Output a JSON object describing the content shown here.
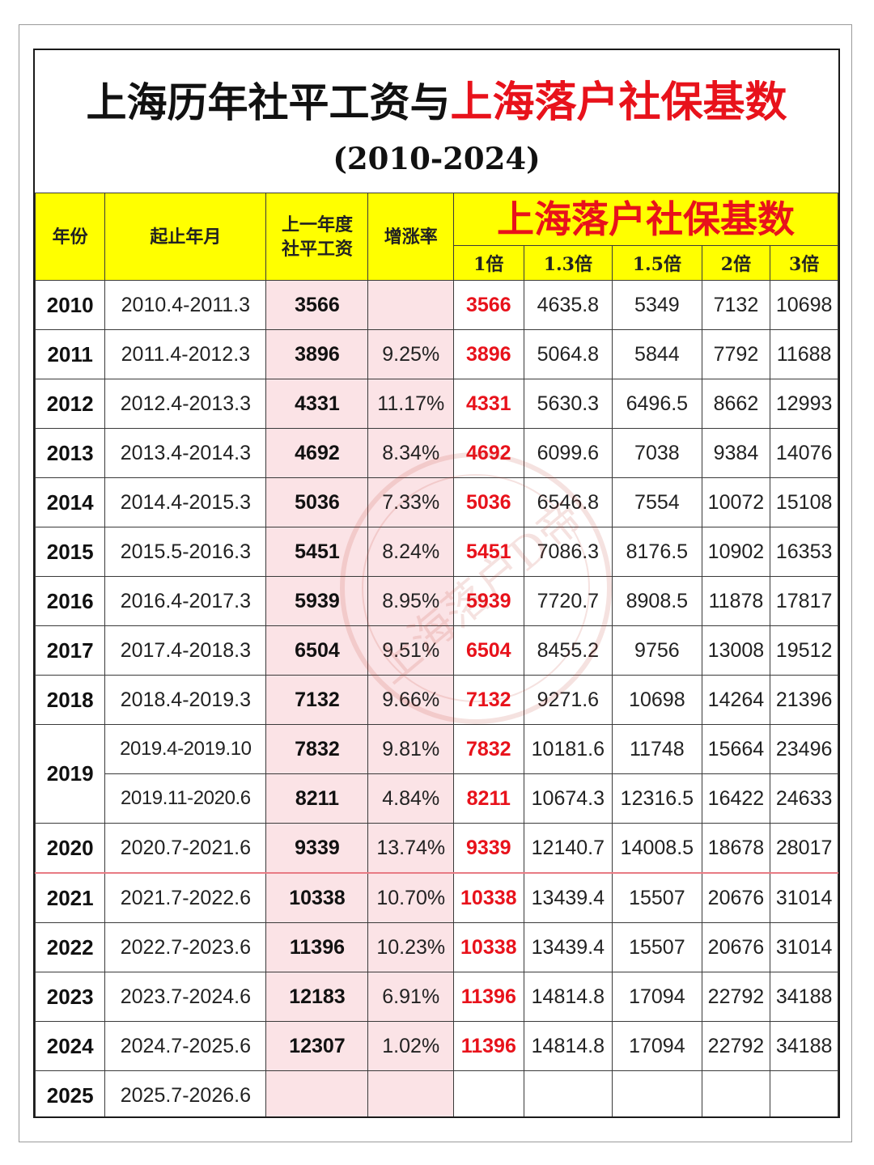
{
  "title": {
    "part1": "上海历年社平工资与",
    "part2": "上海落户社保基数",
    "subtitle": "(2010-2024)"
  },
  "headers": {
    "year": "年份",
    "period": "起止年月",
    "wage_line1": "上一年度",
    "wage_line2": "社平工资",
    "growth": "增涨率",
    "base_title": "上海落户社保基数",
    "multipliers": [
      "1倍",
      "1.3倍",
      "1.5倍",
      "2倍",
      "3倍"
    ]
  },
  "rows": [
    {
      "year": "2010",
      "period": "2010.4-2011.3",
      "wage": "3566",
      "growth": "",
      "b1": "3566",
      "b13": "4635.8",
      "b15": "5349",
      "b2": "7132",
      "b3": "10698"
    },
    {
      "year": "2011",
      "period": "2011.4-2012.3",
      "wage": "3896",
      "growth": "9.25%",
      "b1": "3896",
      "b13": "5064.8",
      "b15": "5844",
      "b2": "7792",
      "b3": "11688"
    },
    {
      "year": "2012",
      "period": "2012.4-2013.3",
      "wage": "4331",
      "growth": "11.17%",
      "b1": "4331",
      "b13": "5630.3",
      "b15": "6496.5",
      "b2": "8662",
      "b3": "12993"
    },
    {
      "year": "2013",
      "period": "2013.4-2014.3",
      "wage": "4692",
      "growth": "8.34%",
      "b1": "4692",
      "b13": "6099.6",
      "b15": "7038",
      "b2": "9384",
      "b3": "14076"
    },
    {
      "year": "2014",
      "period": "2014.4-2015.3",
      "wage": "5036",
      "growth": "7.33%",
      "b1": "5036",
      "b13": "6546.8",
      "b15": "7554",
      "b2": "10072",
      "b3": "15108"
    },
    {
      "year": "2015",
      "period": "2015.5-2016.3",
      "wage": "5451",
      "growth": "8.24%",
      "b1": "5451",
      "b13": "7086.3",
      "b15": "8176.5",
      "b2": "10902",
      "b3": "16353"
    },
    {
      "year": "2016",
      "period": "2016.4-2017.3",
      "wage": "5939",
      "growth": "8.95%",
      "b1": "5939",
      "b13": "7720.7",
      "b15": "8908.5",
      "b2": "11878",
      "b3": "17817"
    },
    {
      "year": "2017",
      "period": "2017.4-2018.3",
      "wage": "6504",
      "growth": "9.51%",
      "b1": "6504",
      "b13": "8455.2",
      "b15": "9756",
      "b2": "13008",
      "b3": "19512"
    },
    {
      "year": "2018",
      "period": "2018.4-2019.3",
      "wage": "7132",
      "growth": "9.66%",
      "b1": "7132",
      "b13": "9271.6",
      "b15": "10698",
      "b2": "14264",
      "b3": "21396"
    },
    {
      "year": "2019",
      "period": "2019.4-2019.10",
      "wage": "7832",
      "growth": "9.81%",
      "b1": "7832",
      "b13": "10181.6",
      "b15": "11748",
      "b2": "15664",
      "b3": "23496"
    },
    {
      "year": "",
      "period": "2019.11-2020.6",
      "wage": "8211",
      "growth": "4.84%",
      "b1": "8211",
      "b13": "10674.3",
      "b15": "12316.5",
      "b2": "16422",
      "b3": "24633"
    },
    {
      "year": "2020",
      "period": "2020.7-2021.6",
      "wage": "9339",
      "growth": "13.74%",
      "b1": "9339",
      "b13": "12140.7",
      "b15": "14008.5",
      "b2": "18678",
      "b3": "28017"
    },
    {
      "year": "2021",
      "period": "2021.7-2022.6",
      "wage": "10338",
      "growth": "10.70%",
      "b1": "10338",
      "b13": "13439.4",
      "b15": "15507",
      "b2": "20676",
      "b3": "31014"
    },
    {
      "year": "2022",
      "period": "2022.7-2023.6",
      "wage": "11396",
      "growth": "10.23%",
      "b1": "10338",
      "b13": "13439.4",
      "b15": "15507",
      "b2": "20676",
      "b3": "31014"
    },
    {
      "year": "2023",
      "period": "2023.7-2024.6",
      "wage": "12183",
      "growth": "6.91%",
      "b1": "11396",
      "b13": "14814.8",
      "b15": "17094",
      "b2": "22792",
      "b3": "34188"
    },
    {
      "year": "2024",
      "period": "2024.7-2025.6",
      "wage": "12307",
      "growth": "1.02%",
      "b1": "11396",
      "b13": "14814.8",
      "b15": "17094",
      "b2": "22792",
      "b3": "34188"
    },
    {
      "year": "2025",
      "period": "2025.7-2026.6",
      "wage": "",
      "growth": "",
      "b1": "",
      "b13": "",
      "b15": "",
      "b2": "",
      "b3": ""
    }
  ],
  "watermark_text": "上海落户D帝",
  "colors": {
    "header_bg": "#ffff00",
    "accent_red": "#e8121b",
    "wage_col_bg": "#fbe3e6",
    "divider_red": "#e87b84"
  }
}
